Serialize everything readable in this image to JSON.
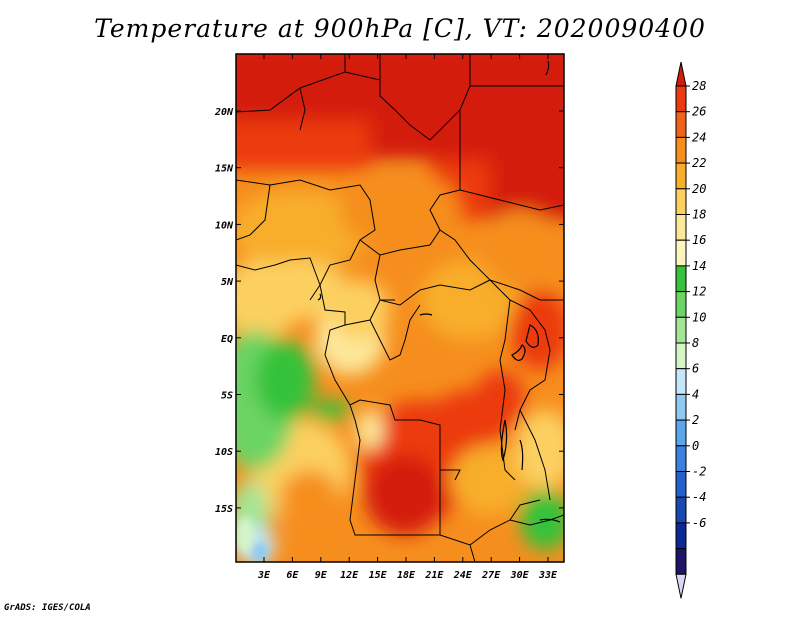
{
  "title": "Temperature at 900hPa [C], VT: 2020090400",
  "credit": "GrADS: IGES/COLA",
  "map": {
    "region": "Central and Southern Africa",
    "variable": "Temperature",
    "level": "900hPa",
    "units": "C",
    "valid_time": "2020090400",
    "lon_labels": [
      "3E",
      "6E",
      "9E",
      "12E",
      "15E",
      "18E",
      "21E",
      "24E",
      "27E",
      "30E",
      "33E"
    ],
    "lat_labels": [
      "20N",
      "15N",
      "10N",
      "5N",
      "EQ",
      "5S",
      "10S",
      "15S"
    ]
  },
  "colorbar": {
    "levels": [
      "28",
      "26",
      "24",
      "22",
      "20",
      "18",
      "16",
      "14",
      "12",
      "10",
      "8",
      "6",
      "4",
      "2",
      "0",
      "-2",
      "-4",
      "-6"
    ],
    "colors": [
      "#d41c0a",
      "#ec3a10",
      "#f0641a",
      "#f68e1e",
      "#f8ae2a",
      "#fcd060",
      "#fce89a",
      "#fcf6be",
      "#36c23a",
      "#6cd464",
      "#a4e696",
      "#d6f6c6",
      "#c4e8fa",
      "#8ecaf2",
      "#5aa6ea",
      "#3b82de",
      "#2460cc",
      "#1848b0",
      "#0c2896",
      "#1c1464",
      "#d8d8f4"
    ]
  }
}
